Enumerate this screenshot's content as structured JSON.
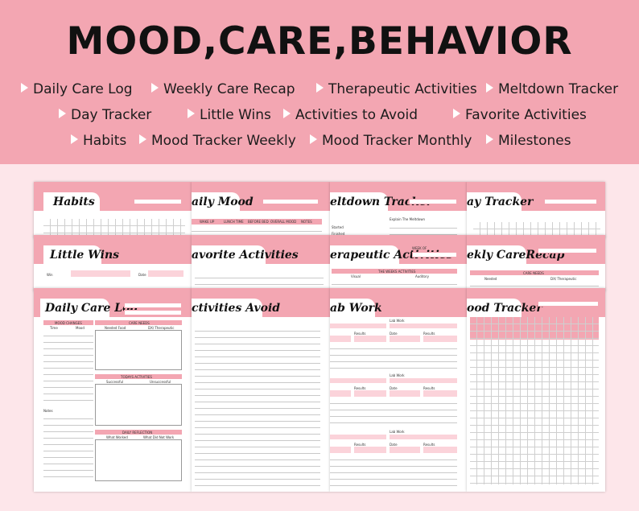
{
  "title": "MOOD,CARE,BEHAVIOR",
  "features": [
    "Daily Care Log",
    "Weekly Care Recap",
    "Therapeutic Activities",
    "Meltdown Tracker",
    "Day Tracker",
    "Little Wins",
    "Activities to Avoid",
    "Favorite Activities",
    "Habits",
    "Mood Tracker Weekly",
    "Mood Tracker Monthly",
    "Milestones"
  ],
  "pages": {
    "habits": {
      "title": "Habits"
    },
    "daily_mood": {
      "title": "aily Mood",
      "cols": [
        "WAKE UP",
        "LUNCH TIME",
        "BEFORE BED",
        "OVERALL MOOD",
        "NOTES"
      ]
    },
    "meltdown": {
      "title": "eltdown Tracker",
      "label1": "Explain The Meltdown",
      "label2": "Started",
      "label3": "Finished"
    },
    "day_tracker": {
      "title": "ay Tracker"
    },
    "little_wins": {
      "title": "Little Wins",
      "win": "Win",
      "date": "Date"
    },
    "favorite": {
      "title": "avorite Activities"
    },
    "therapeutic": {
      "title": "erapeutic Activities",
      "header": "THE WEEKS ACTIVITIES",
      "col1": "Visual",
      "col2": "Auditory",
      "week": "WEEK OF"
    },
    "weekly_recap": {
      "title": "ekly CareRecap",
      "header": "CARE NEEDS",
      "col1": "Needed",
      "col2": "DX/ Therapeutic"
    },
    "daily_care": {
      "title": "Daily Care Log",
      "mood_header": "MOOD CHANGES",
      "time": "Time",
      "mood": "Mood",
      "care_header": "CARE NEEDS",
      "needed": "Needed Food",
      "dx": "DX/ Therapeutic",
      "today_header": "TODAYS ACTIVITIES",
      "successful": "Successful",
      "unsuccessful": "Unsuccessful",
      "notes": "Notes",
      "reflection_header": "DAILY REFLECTION",
      "worked": "What Worked",
      "didnt": "What Did Not Work"
    },
    "activities_avoid": {
      "title": "ctivities Avoid"
    },
    "lab_work": {
      "title": "ab Work",
      "lab": "Lab Work",
      "results": "Results",
      "date": "Date"
    },
    "food_tracker": {
      "title": "ood Tracker"
    }
  },
  "colors": {
    "banner": "#f3a6b2",
    "background": "#fde6ea",
    "accent_light": "#fbd3da"
  }
}
